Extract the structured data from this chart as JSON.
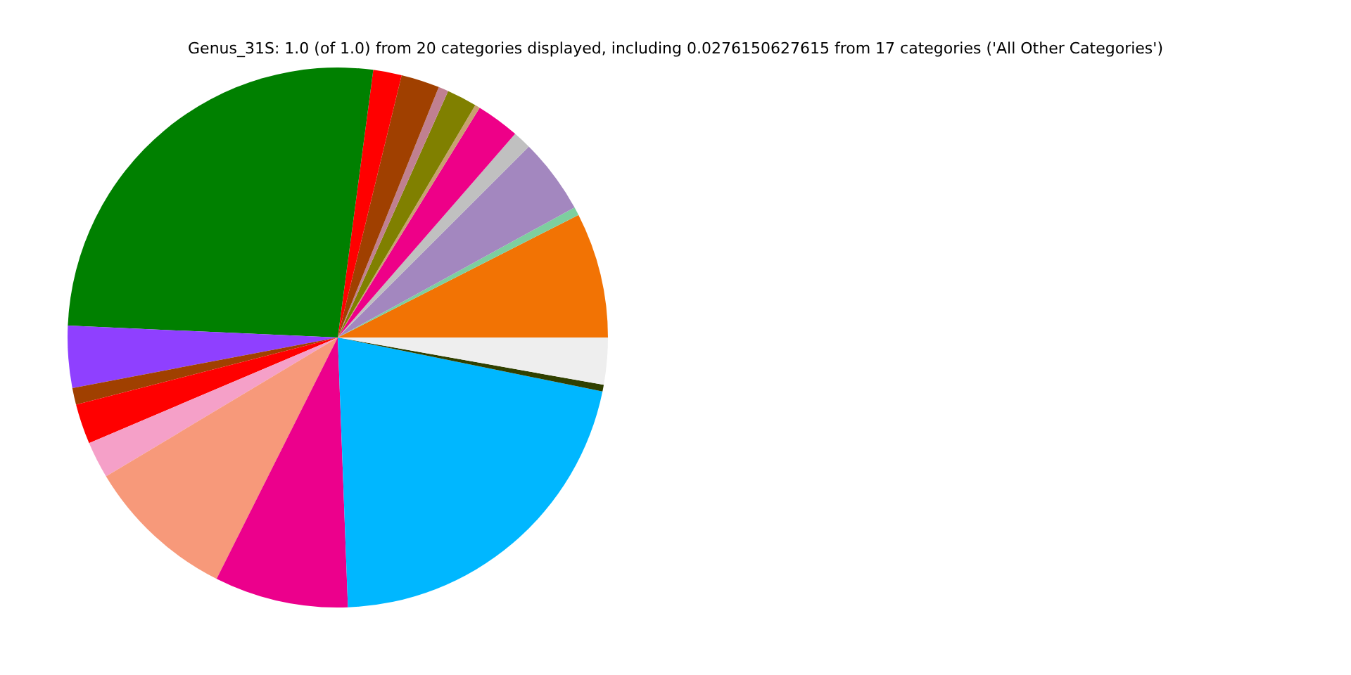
{
  "chart_data": {
    "type": "pie",
    "title": "Genus_31S: 1.0 (of 1.0) from 20 categories displayed, including 0.0276150627615 from 17 categories ('All Other Categories')",
    "categories": [
      null,
      null,
      null,
      null,
      null,
      null,
      null,
      null,
      null,
      null,
      null,
      null,
      null,
      null,
      null,
      null,
      null,
      null,
      null,
      null
    ],
    "values": [
      7.5,
      0.5,
      4.5,
      1.1,
      2.6,
      0.3,
      1.8,
      0.6,
      2.3,
      1.7,
      26.4,
      3.7,
      1.0,
      2.4,
      2.2,
      9.0,
      8.0,
      21.2,
      0.4,
      2.8
    ],
    "colors": [
      "#f27304",
      "#7dcf9f",
      "#a387bf",
      "#c0c0c0",
      "#ee0088",
      "#c8a070",
      "#808000",
      "#c08090",
      "#a04000",
      "#ff0000",
      "#008000",
      "#8f40ff",
      "#a04000",
      "#ff0000",
      "#f5a0c8",
      "#f7997a",
      "#ec008c",
      "#00b7ff",
      "#304000",
      "#eeeeee"
    ],
    "legend": false
  }
}
